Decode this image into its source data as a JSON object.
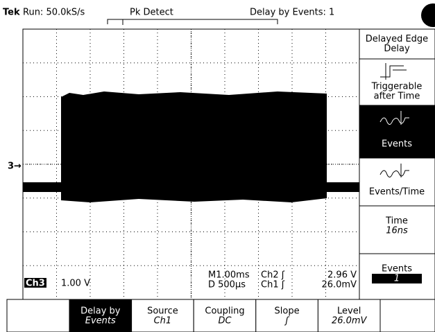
{
  "header": {
    "brand": "Tek",
    "acquisition": "Run: 50.0kS/s",
    "mode": "Pk Detect",
    "delay": "Delay by Events: 1"
  },
  "marker": "3→",
  "readouts": {
    "channel": "Ch3",
    "scale": "1.00 V",
    "main": "M1.00ms",
    "delayed": "D  500µs",
    "trig2": "Ch2 ʃ",
    "trig2_level": "2.96 V",
    "trig1": "Ch1 ʃ",
    "trig1_level": "26.0mV"
  },
  "side_menu": [
    {
      "lines": [
        "Delayed Edge",
        "Delay"
      ]
    },
    {
      "lines": [
        "Triggerable",
        "after Time"
      ]
    },
    {
      "lines": [
        "Events"
      ],
      "selected": true
    },
    {
      "lines": [
        "Events/Time"
      ]
    },
    {
      "lines": [
        "Time"
      ],
      "value": "16ns"
    },
    {
      "lines": [
        "Events"
      ],
      "value": "1",
      "boxed": true
    }
  ],
  "bottom_menu": [
    {
      "label": "Delay by",
      "value": "Events",
      "selected": true
    },
    {
      "label": "Source",
      "value": "Ch1"
    },
    {
      "label": "Coupling",
      "value": "DC"
    },
    {
      "label": "Slope",
      "value": "ʃ"
    },
    {
      "label": "Level",
      "value": "26.0mV"
    }
  ]
}
